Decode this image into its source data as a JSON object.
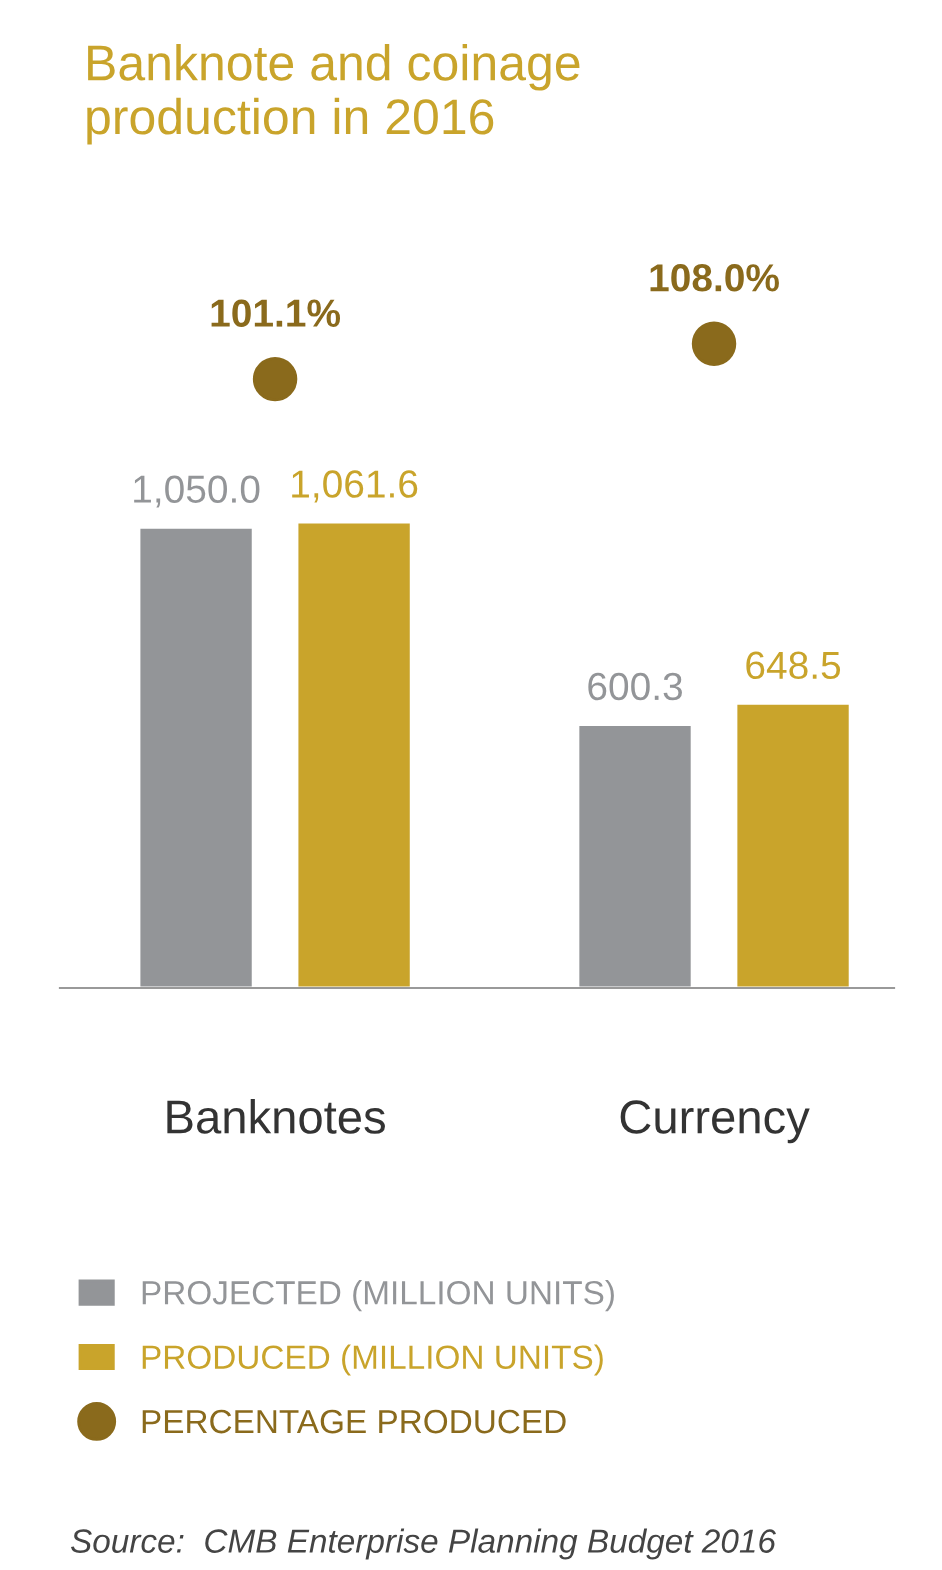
{
  "chart_data": {
    "type": "bar",
    "title": "Banknote and coinage\nproduction in 2016",
    "categories": [
      "Banknotes",
      "Currency"
    ],
    "series": [
      {
        "name": "PROJECTED (MILLION UNITS)",
        "color": "#939598",
        "values": [
          1050.0,
          600.3
        ],
        "value_labels": [
          "1,050.0",
          "600.3"
        ]
      },
      {
        "name": "PRODUCED (MILLION UNITS)",
        "color": "#c9a42b",
        "values": [
          1061.6,
          648.5
        ],
        "value_labels": [
          "1,061.6",
          "648.5"
        ]
      }
    ],
    "tick_labels": "x",
    "legend": "bottom",
    "grid": false,
    "annotations": [
      "101.1%",
      "108.0%",
      "PERCENTAGE PRODUCED",
      "Source:  CMB Enterprise Planning Budget 2016"
    ]
  }
}
